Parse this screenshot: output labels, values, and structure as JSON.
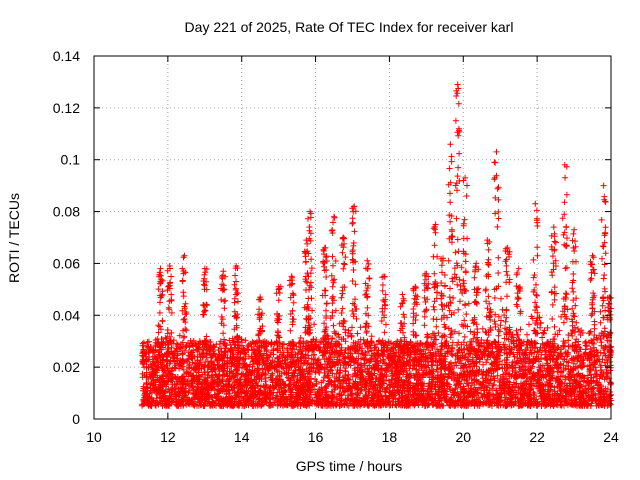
{
  "chart_data": {
    "type": "scatter",
    "title": "Day 221 of 2025, Rate Of TEC Index for receiver karl",
    "xlabel": "GPS time / hours",
    "ylabel": "ROTI / TECUs",
    "xlim": [
      10,
      24
    ],
    "ylim": [
      0,
      0.14
    ],
    "xticks": [
      10,
      12,
      14,
      16,
      18,
      20,
      22,
      24
    ],
    "xtick_labels": [
      "10",
      "12",
      "14",
      "16",
      "18",
      "20",
      "22",
      "24"
    ],
    "yticks": [
      0,
      0.02,
      0.04,
      0.06,
      0.08,
      0.1,
      0.12,
      0.14
    ],
    "ytick_labels": [
      "0",
      "0.02",
      "0.04",
      "0.06",
      "0.08",
      "0.1",
      "0.12",
      "0.14"
    ],
    "grid": true,
    "marker": "+",
    "color": "#ff0000",
    "series": [
      {
        "name": "ROTI",
        "x_range": [
          11.3,
          24.0
        ],
        "typical_range": [
          0.005,
          0.03
        ],
        "peaks": [
          {
            "x": 11.8,
            "y": 0.058
          },
          {
            "x": 12.05,
            "y": 0.059
          },
          {
            "x": 12.45,
            "y": 0.063
          },
          {
            "x": 13.0,
            "y": 0.058
          },
          {
            "x": 13.5,
            "y": 0.057
          },
          {
            "x": 13.85,
            "y": 0.059
          },
          {
            "x": 14.5,
            "y": 0.047
          },
          {
            "x": 15.0,
            "y": 0.051
          },
          {
            "x": 15.35,
            "y": 0.055
          },
          {
            "x": 15.75,
            "y": 0.069
          },
          {
            "x": 15.85,
            "y": 0.08
          },
          {
            "x": 16.25,
            "y": 0.066
          },
          {
            "x": 16.5,
            "y": 0.078
          },
          {
            "x": 16.75,
            "y": 0.07
          },
          {
            "x": 17.05,
            "y": 0.082
          },
          {
            "x": 17.4,
            "y": 0.061
          },
          {
            "x": 17.85,
            "y": 0.055
          },
          {
            "x": 18.35,
            "y": 0.048
          },
          {
            "x": 18.7,
            "y": 0.051
          },
          {
            "x": 19.0,
            "y": 0.056
          },
          {
            "x": 19.25,
            "y": 0.075
          },
          {
            "x": 19.45,
            "y": 0.062
          },
          {
            "x": 19.65,
            "y": 0.106
          },
          {
            "x": 19.85,
            "y": 0.129
          },
          {
            "x": 20.05,
            "y": 0.093
          },
          {
            "x": 20.35,
            "y": 0.06
          },
          {
            "x": 20.65,
            "y": 0.069
          },
          {
            "x": 20.9,
            "y": 0.103
          },
          {
            "x": 21.2,
            "y": 0.066
          },
          {
            "x": 21.5,
            "y": 0.058
          },
          {
            "x": 21.95,
            "y": 0.083
          },
          {
            "x": 22.45,
            "y": 0.074
          },
          {
            "x": 22.75,
            "y": 0.098
          },
          {
            "x": 23.0,
            "y": 0.073
          },
          {
            "x": 23.5,
            "y": 0.063
          },
          {
            "x": 23.8,
            "y": 0.09
          },
          {
            "x": 23.95,
            "y": 0.047
          }
        ]
      }
    ]
  }
}
